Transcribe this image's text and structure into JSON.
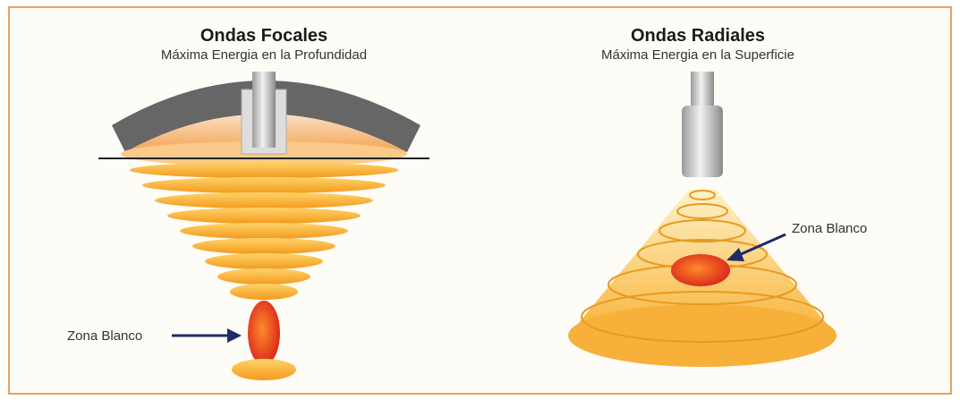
{
  "panels": [
    {
      "title": "Ondas Focales",
      "subtitle": "Máxima Energia en la Profundidad",
      "label": "Zona Blanco"
    },
    {
      "title": "Ondas Radiales",
      "subtitle": "Máxima Energia en la Superficie",
      "label": "Zona Blanco"
    }
  ]
}
